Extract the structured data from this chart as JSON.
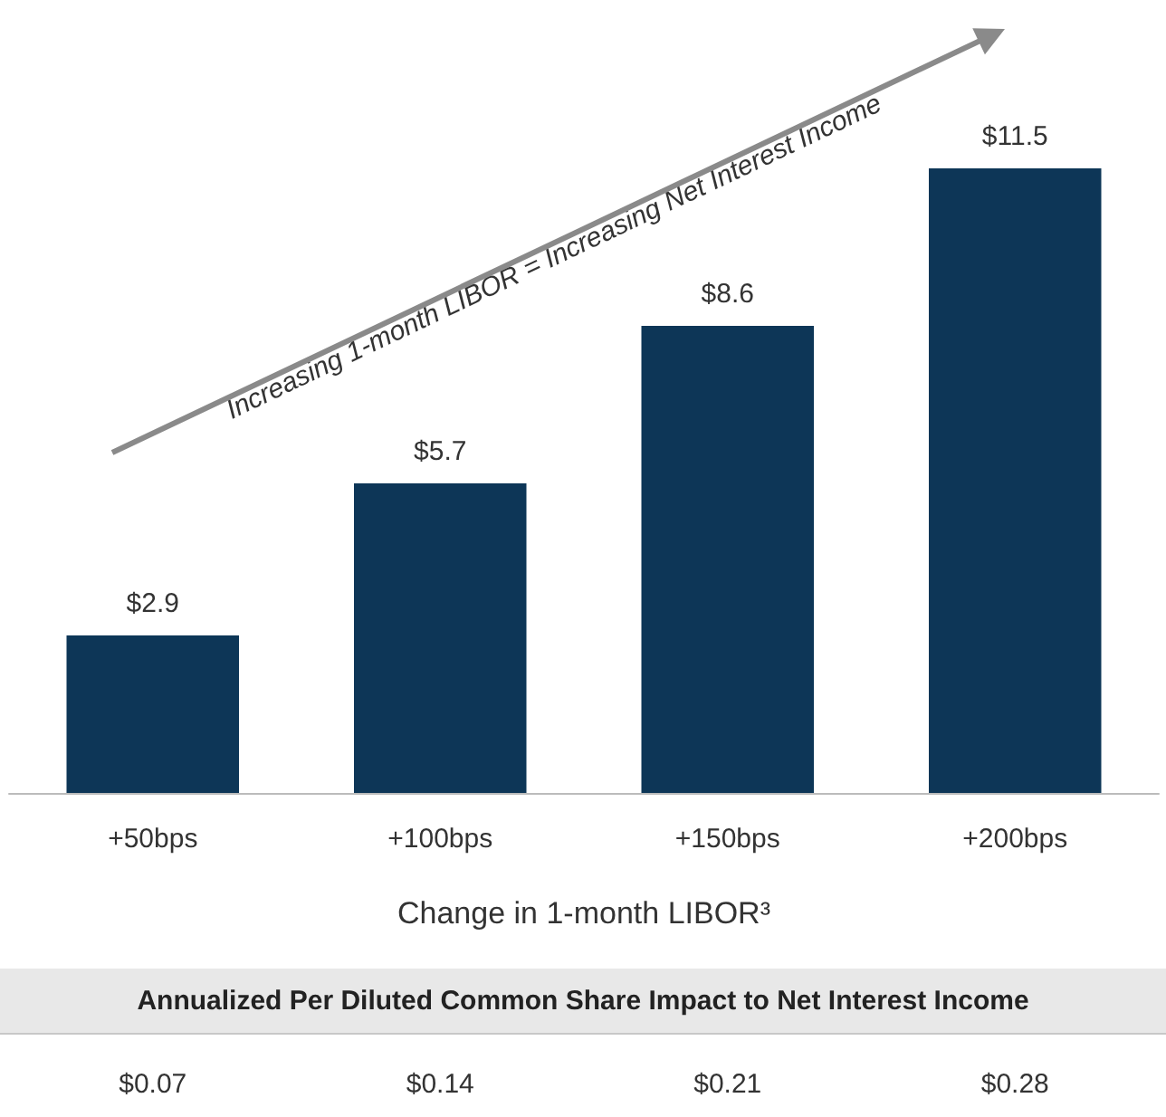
{
  "chart_data": {
    "type": "bar",
    "xlabel": "Change in 1-month LIBOR³",
    "categories": [
      "+50bps",
      "+100bps",
      "+150bps",
      "+200bps"
    ],
    "values": [
      2.9,
      5.7,
      8.6,
      11.5
    ],
    "value_labels": [
      "$2.9",
      "$5.7",
      "$8.6",
      "$11.5"
    ],
    "color": "#0d3657",
    "grid": false,
    "annotations": [
      "Increasing 1-month LIBOR = Increasing Net Interest Income",
      "Annualized Per Diluted Common Share Impact to Net Interest Income",
      "$0.07",
      "$0.14",
      "$0.21",
      "$0.28"
    ]
  }
}
